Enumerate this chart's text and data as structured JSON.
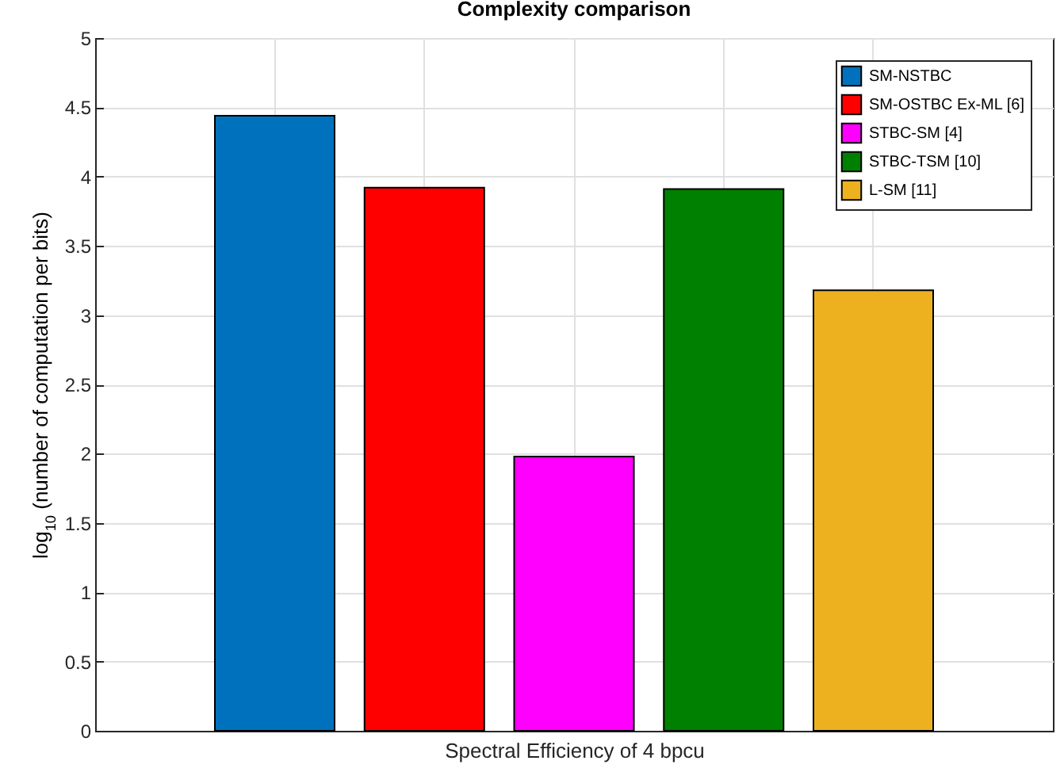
{
  "chart_data": {
    "type": "bar",
    "title": "Complexity comparison",
    "xlabel": "Spectral Efficiency of 4 bpcu",
    "ylabel": "log$_{10}$ (number of computation per bits)",
    "categories": [
      null,
      null,
      null,
      null,
      null
    ],
    "series": [
      {
        "name": "SM-NSTBC",
        "color": "#0072bd",
        "values": [
          4.44,
          null,
          null,
          null,
          null
        ]
      },
      {
        "name": "SM-OSTBC Ex-ML [6]",
        "color": "#ff0000",
        "values": [
          null,
          3.92,
          null,
          null,
          null
        ]
      },
      {
        "name": "STBC-SM [4]",
        "color": "#ff00ff",
        "values": [
          null,
          null,
          1.98,
          null,
          null
        ]
      },
      {
        "name": "STBC-TSM [10]",
        "color": "#008000",
        "values": [
          null,
          null,
          null,
          3.91,
          null
        ]
      },
      {
        "name": "L-SM [11]",
        "color": "#edb120",
        "values": [
          null,
          null,
          null,
          null,
          3.18
        ]
      }
    ],
    "ylim": [
      0,
      5
    ],
    "yticks": [
      0,
      0.5,
      1,
      1.5,
      2,
      2.5,
      3,
      3.5,
      4,
      4.5,
      5
    ],
    "grid": true,
    "legend": "top right",
    "tick_labels": "y"
  }
}
